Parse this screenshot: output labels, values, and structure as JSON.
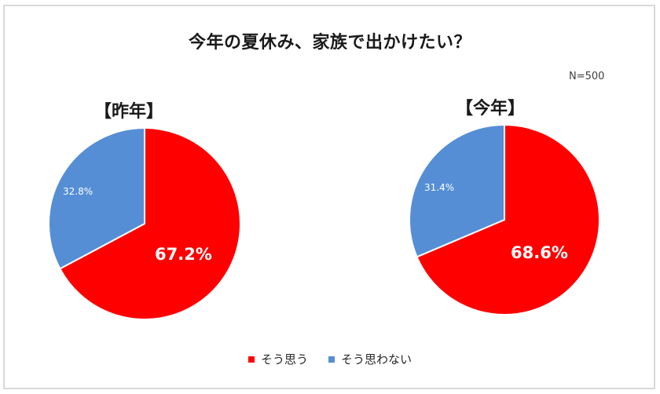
{
  "chart_data": {
    "type": "pie",
    "title": "今年の夏休み、家族で出かけたい？",
    "annotation": "N=500",
    "legend": {
      "position": "bottom",
      "entries": [
        {
          "label": "そう思う",
          "color": "#FF0000"
        },
        {
          "label": "そう思わない",
          "color": "#558ED5"
        }
      ]
    },
    "charts": [
      {
        "title": "【昨年】",
        "categories": [
          "そう思う",
          "そう思わない"
        ],
        "values": [
          67.2,
          32.8
        ],
        "labels": [
          "67.2%",
          "32.8%"
        ],
        "colors": [
          "#FF0000",
          "#558ED5"
        ],
        "start_angle": "12 o'clock, clockwise"
      },
      {
        "title": "【今年】",
        "categories": [
          "そう思う",
          "そう思わない"
        ],
        "values": [
          68.6,
          31.4
        ],
        "labels": [
          "68.6%",
          "31.4%"
        ],
        "colors": [
          "#FF0000",
          "#558ED5"
        ],
        "start_angle": "12 o'clock, clockwise"
      }
    ]
  },
  "header": {
    "title": "今年の夏休み、家族で出かけたい？",
    "sample_size": "N=500"
  },
  "pies": [
    {
      "title": "【昨年】",
      "agree_label": "67.2%",
      "disagree_label": "32.8%"
    },
    {
      "title": "【今年】",
      "agree_label": "68.6%",
      "disagree_label": "31.4%"
    }
  ],
  "legend": {
    "agree": "そう思う",
    "disagree": "そう思わない"
  },
  "colors": {
    "agree": "#FF0000",
    "disagree": "#558ED5",
    "border": "#D9D9D9"
  }
}
